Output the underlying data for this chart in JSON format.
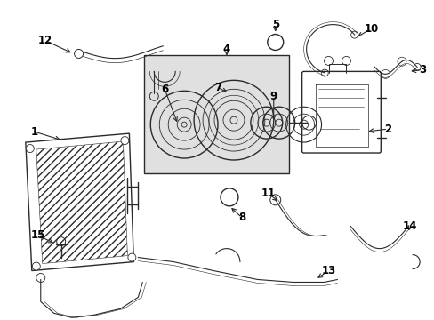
{
  "background_color": "#ffffff",
  "line_color": "#2a2a2a",
  "label_color": "#000000",
  "box_fill": "#e0e0e0",
  "fig_width": 4.89,
  "fig_height": 3.6,
  "dpi": 100
}
